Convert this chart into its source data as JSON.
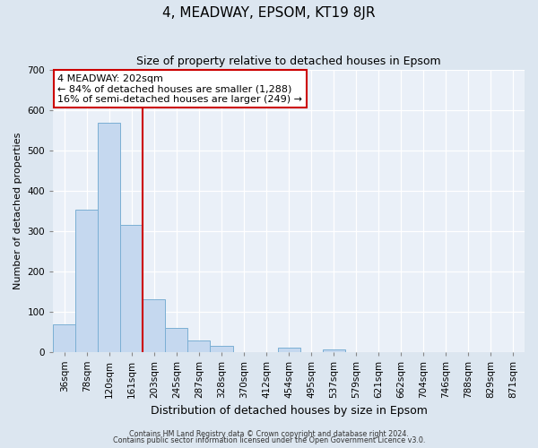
{
  "title": "4, MEADWAY, EPSOM, KT19 8JR",
  "subtitle": "Size of property relative to detached houses in Epsom",
  "xlabel": "Distribution of detached houses by size in Epsom",
  "ylabel": "Number of detached properties",
  "bar_labels": [
    "36sqm",
    "78sqm",
    "120sqm",
    "161sqm",
    "203sqm",
    "245sqm",
    "287sqm",
    "328sqm",
    "370sqm",
    "412sqm",
    "454sqm",
    "495sqm",
    "537sqm",
    "579sqm",
    "621sqm",
    "662sqm",
    "704sqm",
    "746sqm",
    "788sqm",
    "829sqm",
    "871sqm"
  ],
  "bar_values": [
    68,
    353,
    568,
    315,
    130,
    58,
    27,
    14,
    0,
    0,
    10,
    0,
    5,
    0,
    0,
    0,
    0,
    0,
    0,
    0,
    0
  ],
  "bar_color": "#c5d8ef",
  "bar_edge_color": "#7bafd4",
  "vline_color": "#cc0000",
  "vline_idx": 3.5,
  "ylim": [
    0,
    700
  ],
  "yticks": [
    0,
    100,
    200,
    300,
    400,
    500,
    600,
    700
  ],
  "annotation_title": "4 MEADWAY: 202sqm",
  "annotation_line1": "← 84% of detached houses are smaller (1,288)",
  "annotation_line2": "16% of semi-detached houses are larger (249) →",
  "annotation_box_color": "#ffffff",
  "annotation_box_edge": "#cc0000",
  "footer_line1": "Contains HM Land Registry data © Crown copyright and database right 2024.",
  "footer_line2": "Contains public sector information licensed under the Open Government Licence v3.0.",
  "bg_color": "#dce6f0",
  "plot_bg_color": "#eaf0f8",
  "grid_color": "#ffffff",
  "title_fontsize": 11,
  "subtitle_fontsize": 9,
  "xlabel_fontsize": 9,
  "ylabel_fontsize": 8,
  "tick_fontsize": 7.5,
  "annotation_fontsize": 8,
  "footer_fontsize": 5.8
}
